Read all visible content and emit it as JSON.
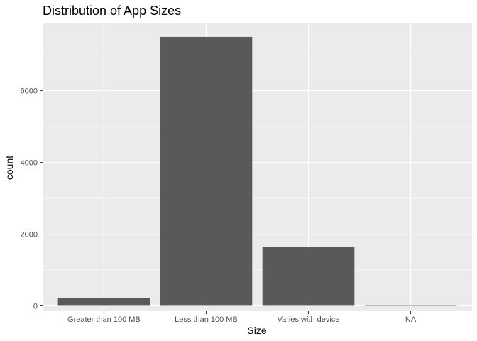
{
  "chart_data": {
    "type": "bar",
    "title": "Distribution of App Sizes",
    "xlabel": "Size",
    "ylabel": "count",
    "categories": [
      "Greater than 100 MB",
      "Less than 100 MB",
      "Varies with device",
      "NA"
    ],
    "values": [
      225,
      7500,
      1650,
      20
    ],
    "ylim": [
      -150,
      7875
    ],
    "yticks": [
      0,
      2000,
      4000,
      6000
    ],
    "ytick_labels": [
      "0",
      "2000",
      "4000",
      "6000"
    ],
    "grid": true,
    "colors": {
      "panel": "#ebebeb",
      "grid_major": "#ffffff",
      "bar": "#595959"
    }
  }
}
